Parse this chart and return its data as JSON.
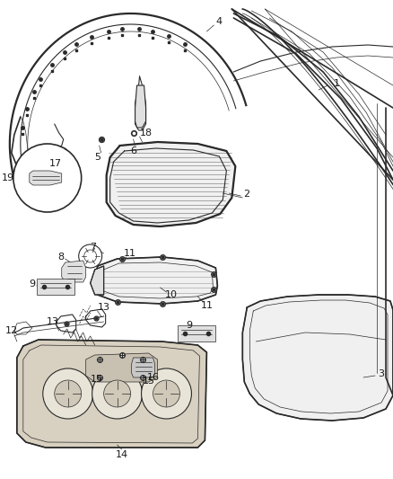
{
  "bg_color": "#ffffff",
  "fig_width": 4.38,
  "fig_height": 5.33,
  "dpi": 100,
  "line_color": "#2a2a2a",
  "label_color": "#1a1a1a",
  "label_fontsize": 7.5,
  "fill_light": "#f0f0f0",
  "fill_medium": "#e0e0e0",
  "fill_dark": "#c8c8c8",
  "fill_tray": "#d8d0c0"
}
